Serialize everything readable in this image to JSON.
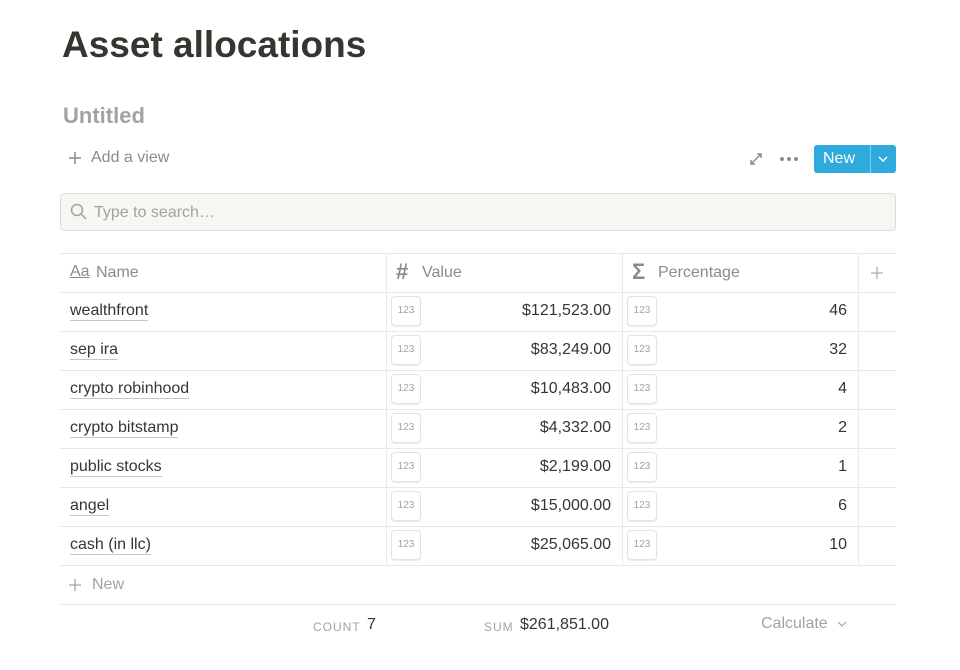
{
  "page": {
    "title": "Asset allocations",
    "view_title": "Untitled"
  },
  "toolbar": {
    "add_view": "Add a view",
    "new_button": "New"
  },
  "search": {
    "placeholder": "Type to search…"
  },
  "table": {
    "columns": [
      {
        "icon": "Aa",
        "name": "Name"
      },
      {
        "icon": "#",
        "name": "Value"
      },
      {
        "icon": "Σ",
        "name": "Percentage"
      }
    ],
    "number_badge": "123",
    "rows": [
      [
        "wealthfront",
        "$121,523.00",
        46
      ],
      [
        "sep ira",
        "$83,249.00",
        32
      ],
      [
        "crypto robinhood",
        "$10,483.00",
        4
      ],
      [
        "crypto bitstamp",
        "$4,332.00",
        2
      ],
      [
        "public stocks",
        "$2,199.00",
        1
      ],
      [
        "angel",
        "$15,000.00",
        6
      ],
      [
        "cash (in llc)",
        "$25,065.00",
        10
      ]
    ],
    "new_row": "New",
    "footer": {
      "count_label": "COUNT",
      "count": 7,
      "sum_label": "SUM",
      "sum": "$261,851.00",
      "calculate": "Calculate"
    }
  }
}
